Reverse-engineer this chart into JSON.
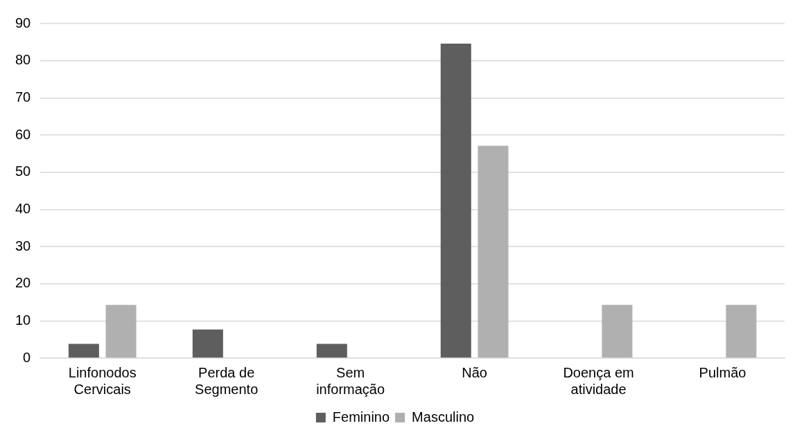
{
  "chart_data": {
    "type": "bar",
    "categories": [
      "Linfonodos Cervicais",
      "Perda de Segmento",
      "Sem informação",
      "Não",
      "Doença em atividade",
      "Pulmão"
    ],
    "series": [
      {
        "name": "Feminino",
        "color": "#5e5e5e",
        "values": [
          3.8,
          7.7,
          3.8,
          84.6,
          0,
          0
        ]
      },
      {
        "name": "Masculino",
        "color": "#b0b0b0",
        "values": [
          14.3,
          0,
          0,
          57.1,
          14.3,
          14.3
        ]
      }
    ],
    "ylim": [
      0,
      90
    ],
    "yticks": [
      0,
      10,
      20,
      30,
      40,
      50,
      60,
      70,
      80,
      90
    ],
    "grid": "y",
    "legend": "bottom"
  }
}
